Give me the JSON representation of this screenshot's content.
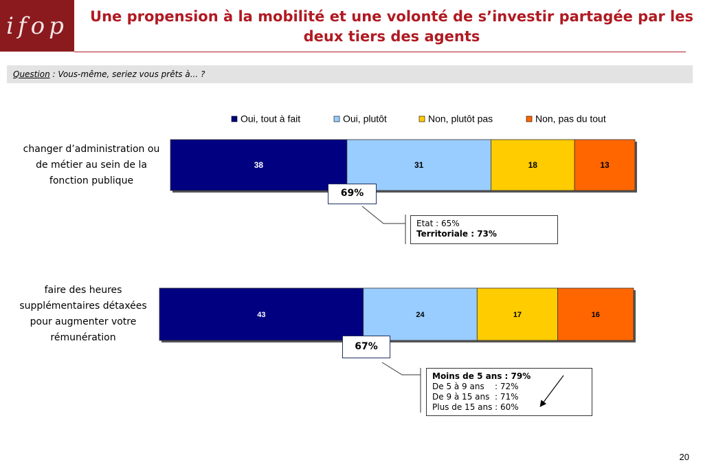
{
  "logo": "ifop",
  "page_number": "20",
  "chart_data": {
    "type": "bar",
    "orientation": "horizontal",
    "stacked": true,
    "title": "Une propension à la mobilité et une volonté de s’investir partagée par les deux tiers des agents",
    "question": {
      "label": "Question",
      "text": " : Vous-même, seriez vous prêts à... ?"
    },
    "categories": [
      "changer d’administration ou de métier au sein de la fonction publique",
      "faire des heures supplémentaires détaxées pour augmenter votre rémunération"
    ],
    "series": [
      {
        "name": "Oui, tout à fait",
        "color": "#000080",
        "values": [
          38,
          43
        ]
      },
      {
        "name": "Oui, plutôt",
        "color": "#99ccff",
        "values": [
          31,
          24
        ]
      },
      {
        "name": "Non, plutôt pas",
        "color": "#ffcc00",
        "values": [
          18,
          17
        ]
      },
      {
        "name": "Non, pas du tout",
        "color": "#ff6600",
        "values": [
          13,
          16
        ]
      }
    ],
    "legend": "top",
    "annotations": [
      {
        "text": "69%",
        "details": [
          {
            "text": "Etat : 65%",
            "bold": false
          },
          {
            "text": "Territoriale : 73%",
            "bold": true
          }
        ]
      },
      {
        "text": "67%",
        "details": [
          {
            "text": "Moins de 5 ans : 79%",
            "bold": true
          },
          {
            "text": "De 5 à 9 ans    : 72%",
            "bold": false
          },
          {
            "text": "De 9 à 15 ans  : 71%",
            "bold": false
          },
          {
            "text": "Plus de 15 ans : 60%",
            "bold": false
          }
        ]
      }
    ]
  }
}
